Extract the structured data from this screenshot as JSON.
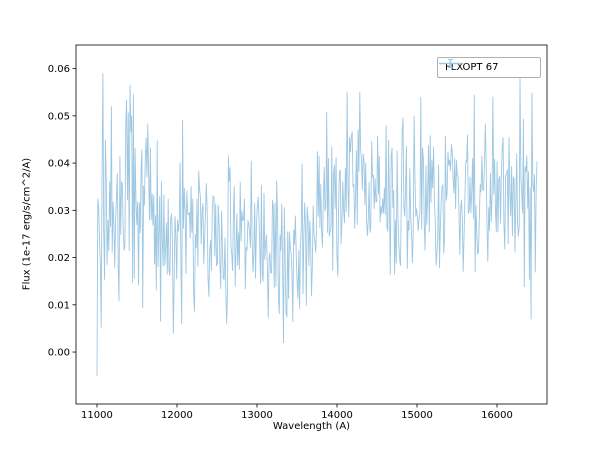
{
  "chart_data": {
    "type": "line",
    "plot_style": "errorbar-spectrum",
    "title": "",
    "xlabel": "Wavelength (A)",
    "ylabel": "Flux (1e-17 erg/s/cm^2/A)",
    "legend": {
      "label": "FLXOPT 67",
      "position": "upper right"
    },
    "line_color": "#9ec7e2",
    "spine_color": "#000000",
    "grid": false,
    "x_ticks": [
      11000,
      12000,
      13000,
      14000,
      15000,
      16000
    ],
    "y_ticks": [
      0.0,
      0.01,
      0.02,
      0.03,
      0.04,
      0.05,
      0.06
    ],
    "xlim": [
      10738,
      16625
    ],
    "ylim": [
      -0.011,
      0.065
    ],
    "x_range_data": [
      11000,
      16500
    ],
    "n_points": 520,
    "seed": 42,
    "noise_amp": 0.013,
    "noise_profile": {
      "x": [
        11000,
        11600,
        12200,
        13500,
        13900,
        15000,
        16500
      ],
      "y": [
        1.4,
        1.15,
        1.0,
        0.95,
        1.1,
        1.05,
        1.2
      ]
    },
    "trend": {
      "x": [
        11000,
        11100,
        11250,
        11400,
        11550,
        11700,
        11900,
        12100,
        12300,
        12500,
        12700,
        12900,
        13100,
        13300,
        13450,
        13600,
        13800,
        13950,
        14100,
        14250,
        14400,
        14600,
        14800,
        15000,
        15200,
        15400,
        15600,
        15800,
        16000,
        16200,
        16350,
        16500
      ],
      "y": [
        0.027,
        0.028,
        0.027,
        0.037,
        0.033,
        0.027,
        0.024,
        0.026,
        0.027,
        0.023,
        0.022,
        0.024,
        0.022,
        0.019,
        0.02,
        0.024,
        0.03,
        0.033,
        0.034,
        0.037,
        0.034,
        0.032,
        0.033,
        0.034,
        0.033,
        0.034,
        0.033,
        0.034,
        0.032,
        0.034,
        0.035,
        0.033
      ]
    },
    "extremes": [
      [
        11005,
        -0.005
      ],
      [
        11075,
        0.059
      ],
      [
        11430,
        0.05
      ],
      [
        11950,
        0.004
      ],
      [
        12060,
        0.006
      ],
      [
        12620,
        0.006
      ],
      [
        13330,
        0.002
      ],
      [
        14290,
        0.055
      ],
      [
        15950,
        0.054
      ],
      [
        16290,
        0.058
      ],
      [
        16430,
        0.007
      ]
    ]
  }
}
